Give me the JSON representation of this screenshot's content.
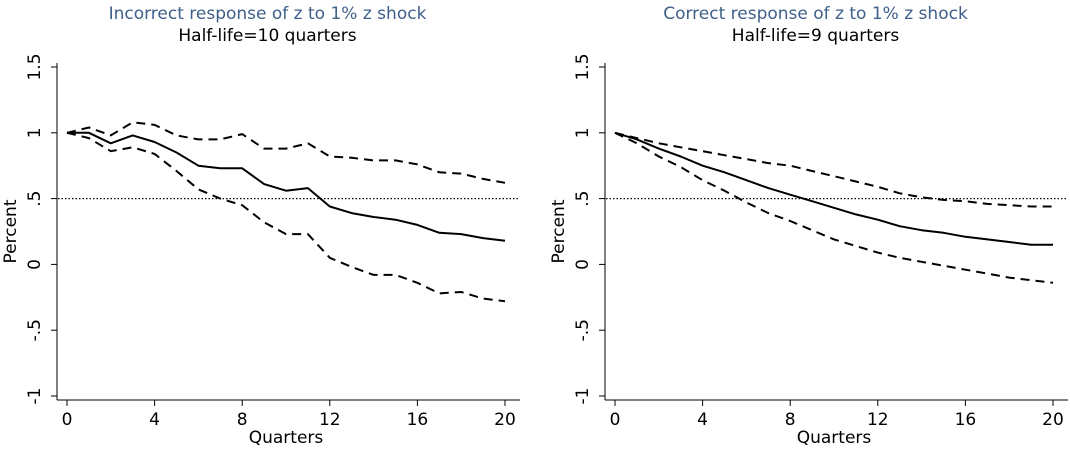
{
  "chart_data": [
    {
      "type": "line",
      "title": "Incorrect response of z to 1% z shock",
      "subtitle": "Half-life=10 quarters",
      "xlabel": "Quarters",
      "ylabel": "Percent",
      "xlim": [
        0,
        20
      ],
      "ylim": [
        -1,
        1.5
      ],
      "xticks": [
        0,
        4,
        8,
        12,
        16,
        20
      ],
      "xtick_labels": [
        "0",
        "4",
        "8",
        "12",
        "16",
        "20"
      ],
      "yticks": [
        -1,
        -0.5,
        0,
        0.5,
        1,
        1.5
      ],
      "ytick_labels": [
        "-1",
        "-.5",
        "0",
        ".5",
        "1",
        "1.5"
      ],
      "reference_line": 0.5,
      "grid": false,
      "x": [
        0,
        1,
        2,
        3,
        4,
        5,
        6,
        7,
        8,
        9,
        10,
        11,
        12,
        13,
        14,
        15,
        16,
        17,
        18,
        19,
        20
      ],
      "series": [
        {
          "style": "solid",
          "values": [
            1.0,
            1.0,
            0.92,
            0.98,
            0.93,
            0.85,
            0.75,
            0.73,
            0.73,
            0.61,
            0.56,
            0.58,
            0.44,
            0.39,
            0.36,
            0.34,
            0.3,
            0.24,
            0.23,
            0.2,
            0.18
          ]
        },
        {
          "style": "dashed",
          "values": [
            1.0,
            1.04,
            0.98,
            1.08,
            1.06,
            0.98,
            0.95,
            0.95,
            0.99,
            0.88,
            0.88,
            0.92,
            0.82,
            0.81,
            0.79,
            0.79,
            0.76,
            0.7,
            0.69,
            0.65,
            0.62
          ]
        },
        {
          "style": "dashed",
          "values": [
            1.0,
            0.96,
            0.86,
            0.89,
            0.84,
            0.71,
            0.57,
            0.5,
            0.45,
            0.32,
            0.23,
            0.23,
            0.05,
            -0.02,
            -0.08,
            -0.08,
            -0.14,
            -0.22,
            -0.21,
            -0.26,
            -0.28
          ]
        }
      ]
    },
    {
      "type": "line",
      "title": "Correct response of z to 1% z shock",
      "subtitle": "Half-life=9 quarters",
      "xlabel": "Quarters",
      "ylabel": "Percent",
      "xlim": [
        0,
        20
      ],
      "ylim": [
        -1,
        1.5
      ],
      "xticks": [
        0,
        4,
        8,
        12,
        16,
        20
      ],
      "xtick_labels": [
        "0",
        "4",
        "8",
        "12",
        "16",
        "20"
      ],
      "yticks": [
        -1,
        -0.5,
        0,
        0.5,
        1,
        1.5
      ],
      "ytick_labels": [
        "-1",
        "-.5",
        "0",
        ".5",
        "1",
        "1.5"
      ],
      "reference_line": 0.5,
      "grid": false,
      "x": [
        0,
        1,
        2,
        3,
        4,
        5,
        6,
        7,
        8,
        9,
        10,
        11,
        12,
        13,
        14,
        15,
        16,
        17,
        18,
        19,
        20
      ],
      "series": [
        {
          "style": "solid",
          "values": [
            1.0,
            0.95,
            0.88,
            0.82,
            0.75,
            0.7,
            0.64,
            0.58,
            0.53,
            0.48,
            0.43,
            0.38,
            0.34,
            0.29,
            0.26,
            0.24,
            0.21,
            0.19,
            0.17,
            0.15,
            0.15
          ]
        },
        {
          "style": "dashed",
          "values": [
            1.0,
            0.96,
            0.92,
            0.89,
            0.86,
            0.83,
            0.8,
            0.77,
            0.75,
            0.71,
            0.67,
            0.63,
            0.59,
            0.54,
            0.51,
            0.49,
            0.48,
            0.46,
            0.45,
            0.44,
            0.44
          ]
        },
        {
          "style": "dashed",
          "values": [
            1.0,
            0.92,
            0.82,
            0.74,
            0.64,
            0.56,
            0.47,
            0.39,
            0.33,
            0.26,
            0.19,
            0.14,
            0.09,
            0.05,
            0.02,
            -0.01,
            -0.04,
            -0.07,
            -0.1,
            -0.12,
            -0.14
          ]
        }
      ]
    }
  ]
}
